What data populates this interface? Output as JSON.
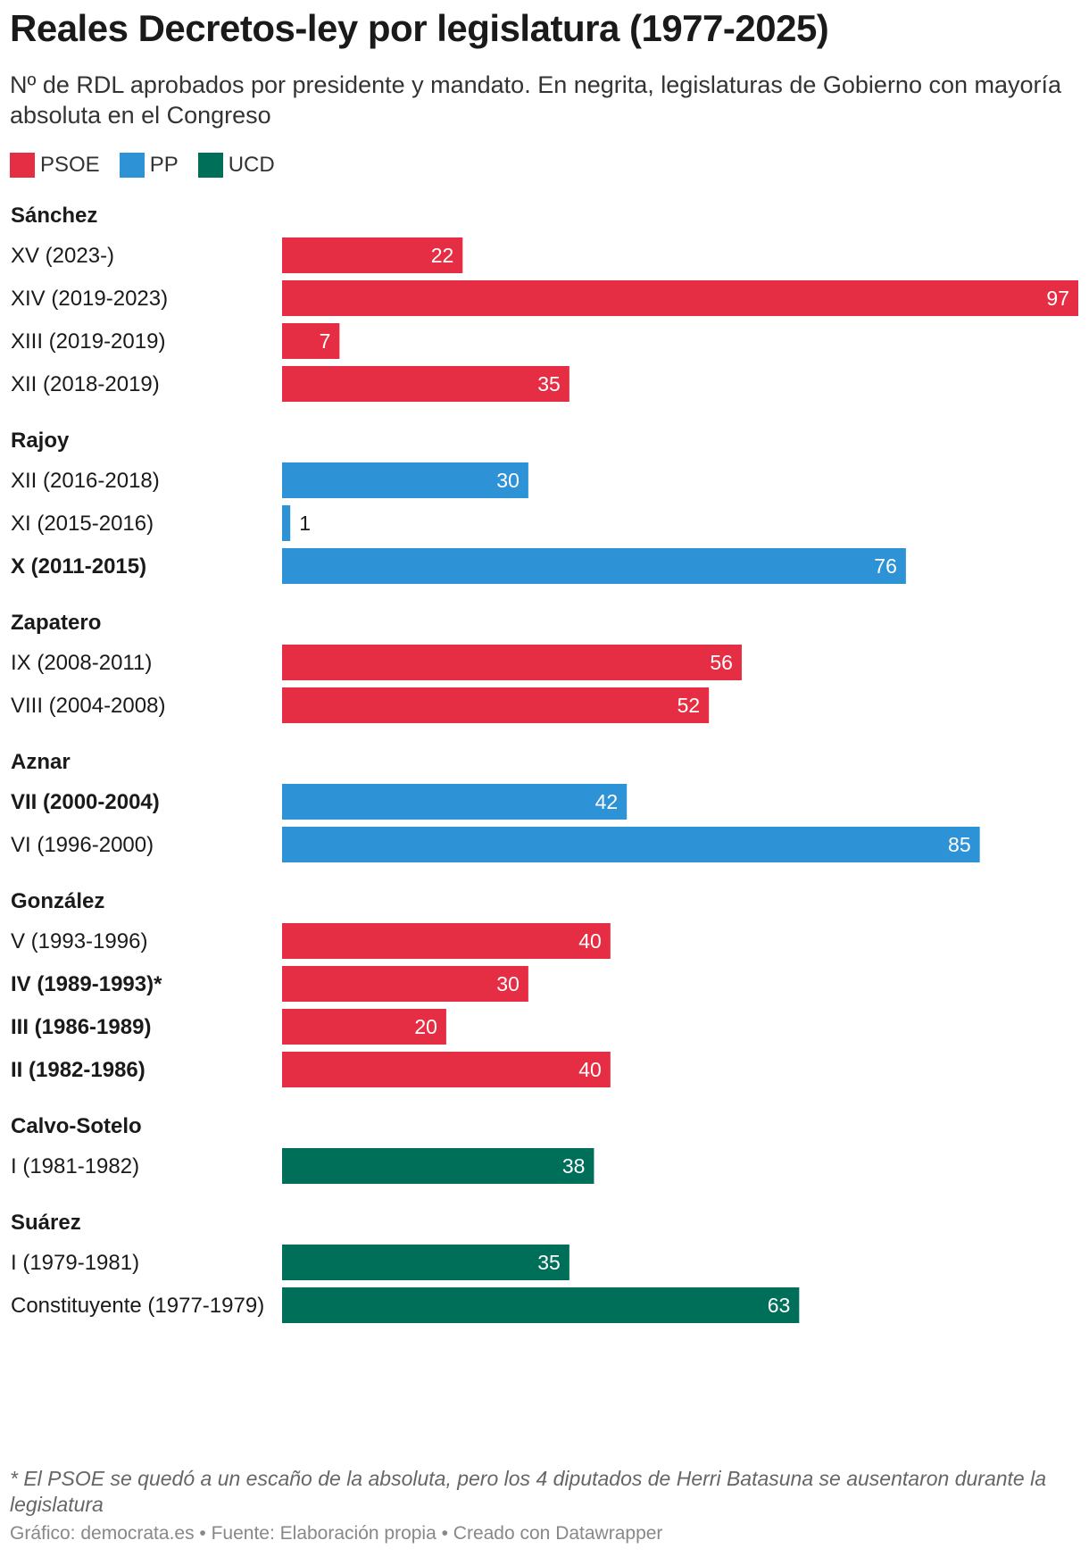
{
  "chart_data": {
    "type": "bar",
    "orientation": "horizontal",
    "title": "Reales Decretos-ley por legislatura (1977-2025)",
    "subtitle": "Nº de RDL aprobados por presidente y mandato. En negrita, legislaturas de Gobierno con mayoría absoluta en el Congreso",
    "xlim": [
      0,
      97
    ],
    "grid": false,
    "legend_position": "top-left",
    "legend": [
      {
        "name": "PSOE",
        "color": "#e52d43"
      },
      {
        "name": "PP",
        "color": "#2d92d6"
      },
      {
        "name": "UCD",
        "color": "#006f5a"
      }
    ],
    "groups": [
      {
        "name": "Sánchez",
        "rows": [
          {
            "label": "XV (2023-)",
            "value": 22,
            "party": "PSOE",
            "bold": false
          },
          {
            "label": "XIV (2019-2023)",
            "value": 97,
            "party": "PSOE",
            "bold": false
          },
          {
            "label": "XIII (2019-2019)",
            "value": 7,
            "party": "PSOE",
            "bold": false
          },
          {
            "label": "XII (2018-2019)",
            "value": 35,
            "party": "PSOE",
            "bold": false
          }
        ]
      },
      {
        "name": "Rajoy",
        "rows": [
          {
            "label": "XII (2016-2018)",
            "value": 30,
            "party": "PP",
            "bold": false
          },
          {
            "label": "XI (2015-2016)",
            "value": 1,
            "party": "PP",
            "bold": false
          },
          {
            "label": "X (2011-2015)",
            "value": 76,
            "party": "PP",
            "bold": true
          }
        ]
      },
      {
        "name": "Zapatero",
        "rows": [
          {
            "label": "IX (2008-2011)",
            "value": 56,
            "party": "PSOE",
            "bold": false
          },
          {
            "label": "VIII (2004-2008)",
            "value": 52,
            "party": "PSOE",
            "bold": false
          }
        ]
      },
      {
        "name": "Aznar",
        "rows": [
          {
            "label": "VII (2000-2004)",
            "value": 42,
            "party": "PP",
            "bold": true
          },
          {
            "label": "VI (1996-2000)",
            "value": 85,
            "party": "PP",
            "bold": false
          }
        ]
      },
      {
        "name": "González",
        "rows": [
          {
            "label": "V (1993-1996)",
            "value": 40,
            "party": "PSOE",
            "bold": false
          },
          {
            "label": "IV (1989-1993)*",
            "value": 30,
            "party": "PSOE",
            "bold": true
          },
          {
            "label": "III (1986-1989)",
            "value": 20,
            "party": "PSOE",
            "bold": true
          },
          {
            "label": "II (1982-1986)",
            "value": 40,
            "party": "PSOE",
            "bold": true
          }
        ]
      },
      {
        "name": "Calvo-Sotelo",
        "rows": [
          {
            "label": "I (1981-1982)",
            "value": 38,
            "party": "UCD",
            "bold": false
          }
        ]
      },
      {
        "name": "Suárez",
        "rows": [
          {
            "label": "I (1979-1981)",
            "value": 35,
            "party": "UCD",
            "bold": false
          },
          {
            "label": "Constituyente (1977-1979)",
            "value": 63,
            "party": "UCD",
            "bold": false
          }
        ]
      }
    ],
    "footnote": "* El PSOE se quedó a un escaño de la absoluta, pero los 4 diputados de Herri Batasuna se ausentaron durante la legislatura",
    "credits": "Gráfico: democrata.es • Fuente: Elaboración propia • Creado con Datawrapper"
  }
}
